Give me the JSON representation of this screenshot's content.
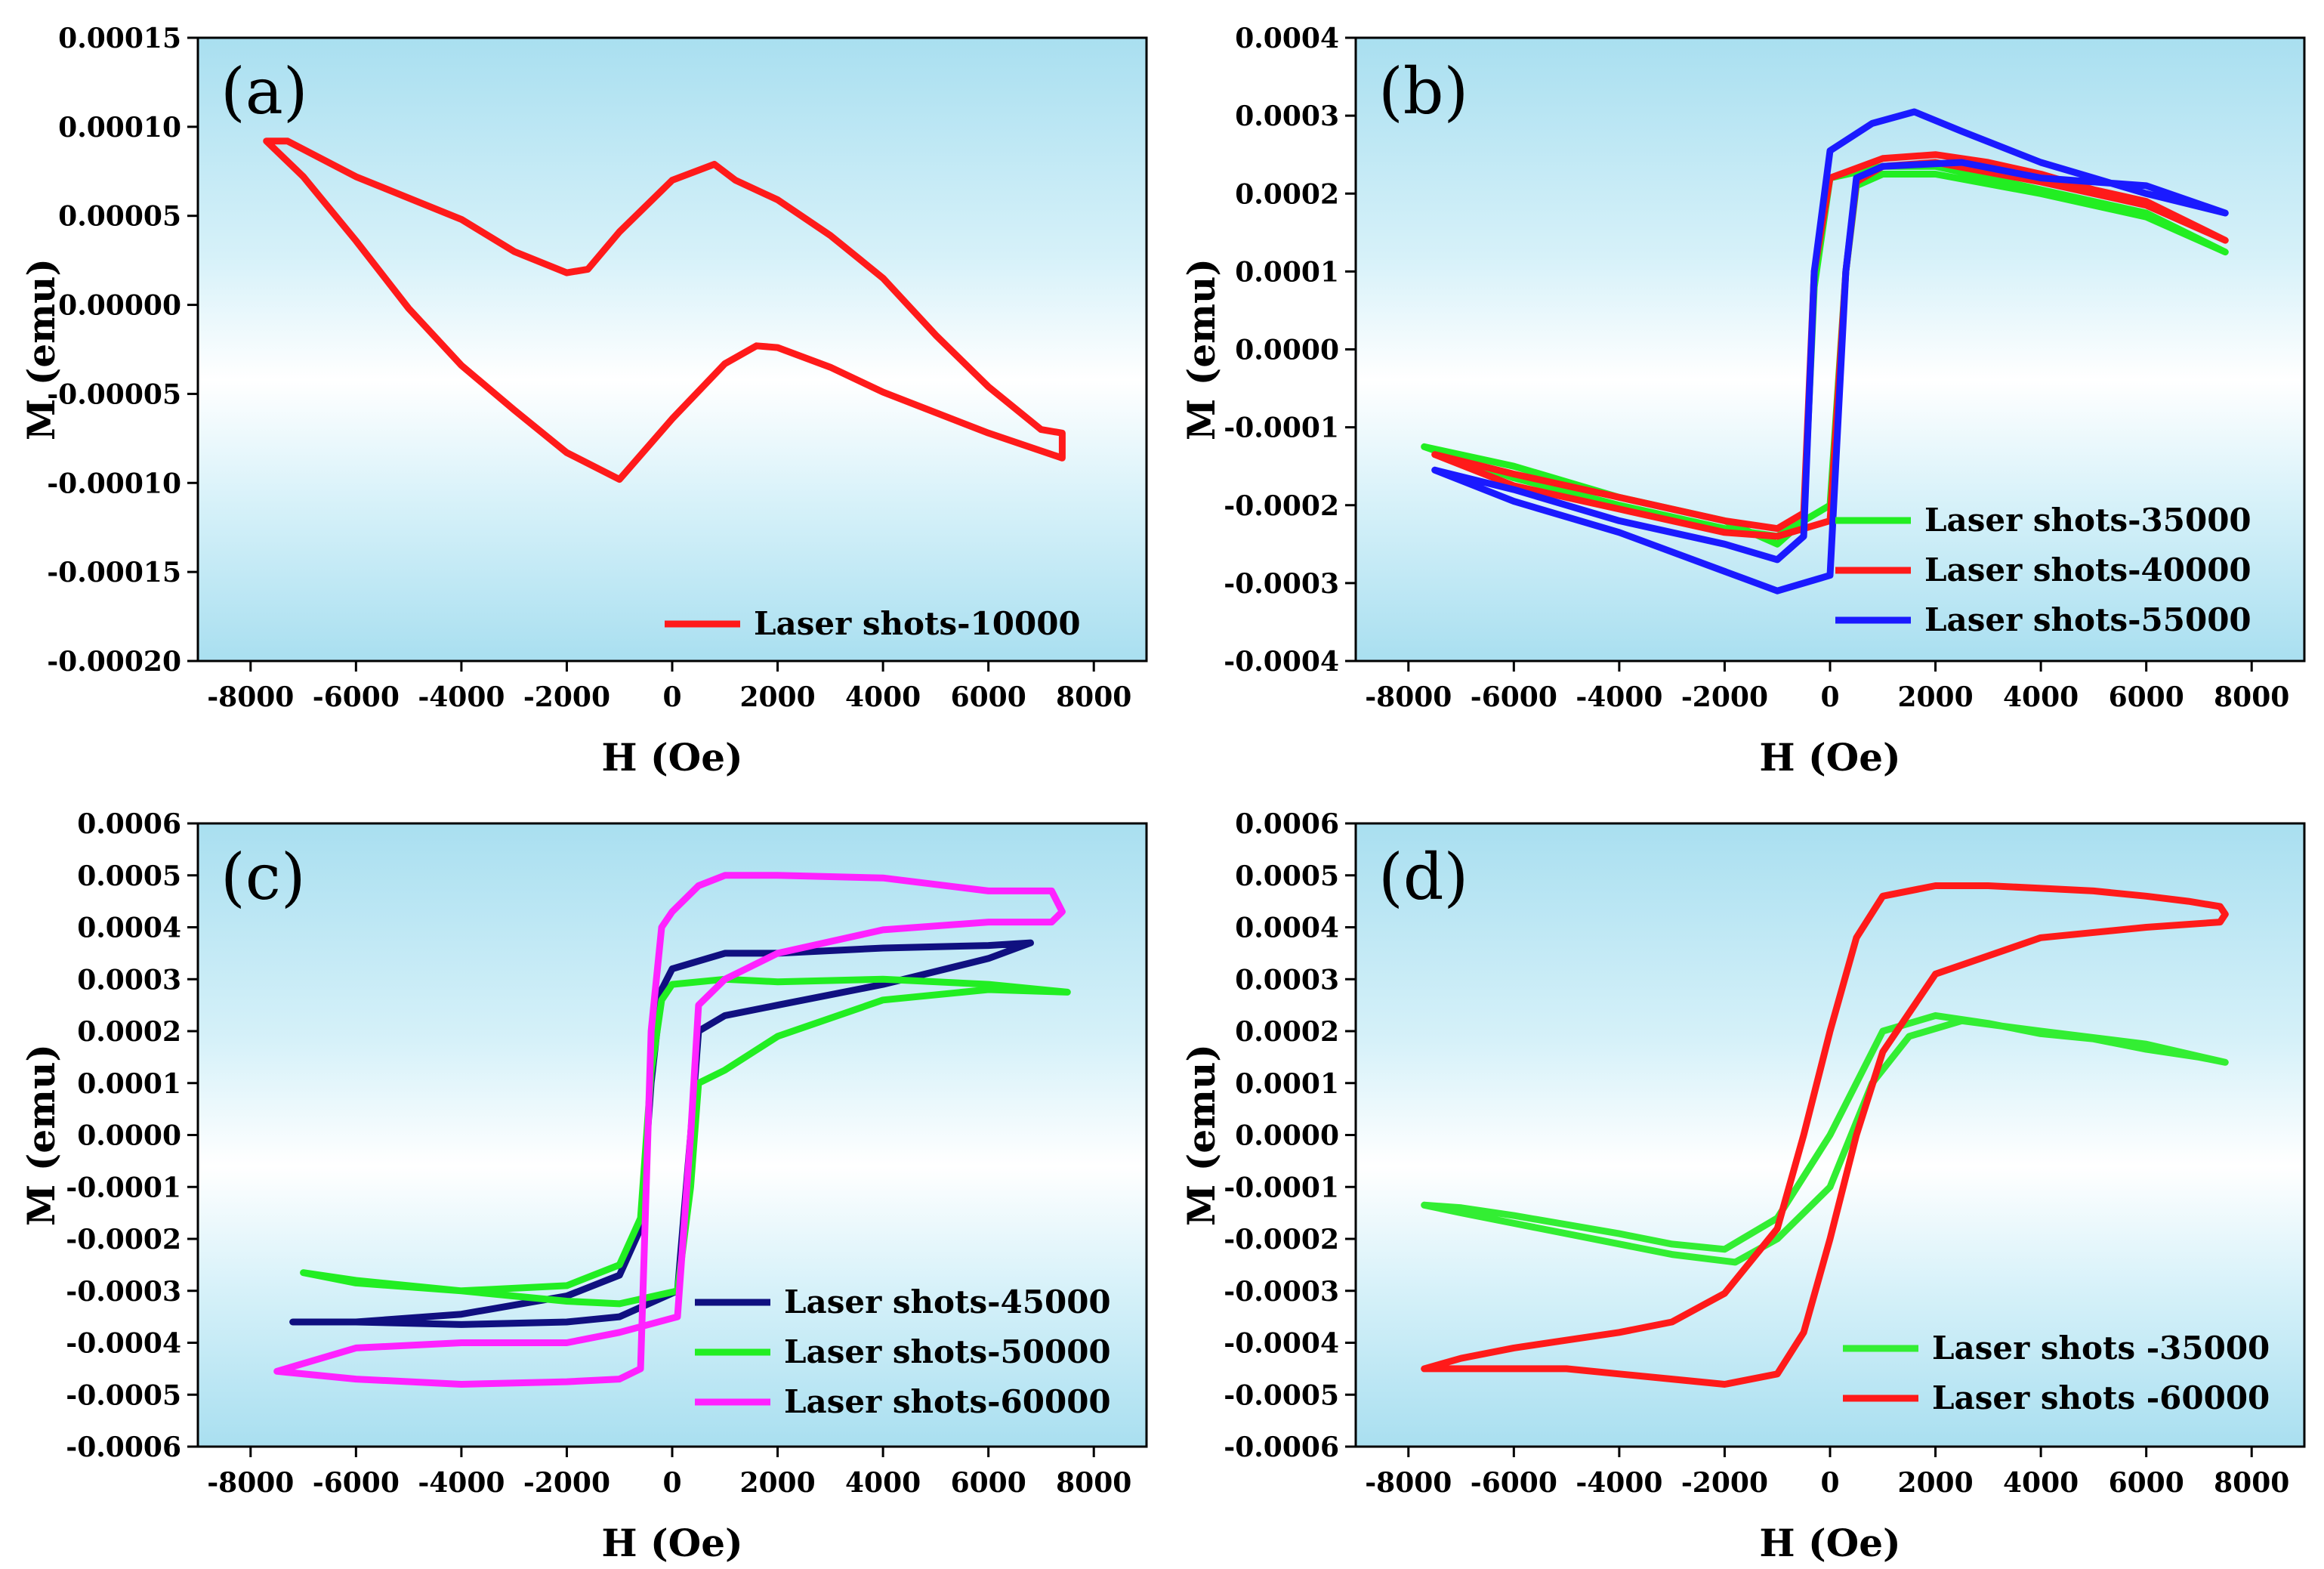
{
  "chart_data": [
    {
      "type": "line",
      "panel_label": "(a)",
      "xlabel": "H (Oe)",
      "ylabel": "M (emu)",
      "xlim": [
        -9000,
        9000
      ],
      "ylim": [
        -0.0002,
        0.00015
      ],
      "xticks": [
        -8000,
        -6000,
        -4000,
        -2000,
        0,
        2000,
        4000,
        6000,
        8000
      ],
      "xtick_labels": [
        "-8000",
        "-6000",
        "-4000",
        "-2000",
        "0",
        "2000",
        "4000",
        "6000",
        "8000"
      ],
      "yticks": [
        -0.0002,
        -0.00015,
        -0.0001,
        -5e-05,
        0,
        5e-05,
        0.0001,
        0.00015
      ],
      "ytick_labels": [
        "-0.00020",
        "-0.00015",
        "-0.00010",
        "-0.00005",
        "0.00000",
        "0.00005",
        "0.00010",
        "0.00015"
      ],
      "legend_position": "bottom-right",
      "series": [
        {
          "name": "Laser shots-10000",
          "color": "#ff1a1a",
          "x": [
            -7700,
            -7300,
            -6000,
            -4000,
            -3000,
            -2000,
            -1600,
            -1000,
            0,
            800,
            1200,
            2000,
            3000,
            4000,
            5000,
            6000,
            7000,
            7400,
            7400,
            7000,
            6000,
            4000,
            3000,
            2000,
            1600,
            1000,
            0,
            -1000,
            -2000,
            -3000,
            -4000,
            -5000,
            -6000,
            -7000,
            -7700
          ],
          "y": [
            9.2e-05,
            9.2e-05,
            7.2e-05,
            4.8e-05,
            3e-05,
            1.8e-05,
            2e-05,
            4.1e-05,
            7e-05,
            7.9e-05,
            7e-05,
            5.9e-05,
            3.9e-05,
            1.5e-05,
            -1.7e-05,
            -4.6e-05,
            -7e-05,
            -7.2e-05,
            -8.6e-05,
            -8.2e-05,
            -7.2e-05,
            -4.9e-05,
            -3.5e-05,
            -2.4e-05,
            -2.3e-05,
            -3.3e-05,
            -6.4e-05,
            -9.8e-05,
            -8.3e-05,
            -5.9e-05,
            -3.4e-05,
            -2e-06,
            3.6e-05,
            7.2e-05,
            9.2e-05
          ]
        }
      ]
    },
    {
      "type": "line",
      "panel_label": "(b)",
      "xlabel": "H (Oe)",
      "ylabel": "M (emu)",
      "xlim": [
        -9000,
        9000
      ],
      "ylim": [
        -0.0004,
        0.0004
      ],
      "xticks": [
        -8000,
        -6000,
        -4000,
        -2000,
        0,
        2000,
        4000,
        6000,
        8000
      ],
      "xtick_labels": [
        "-8000",
        "-6000",
        "-4000",
        "-2000",
        "0",
        "2000",
        "4000",
        "6000",
        "8000"
      ],
      "yticks": [
        -0.0004,
        -0.0003,
        -0.0002,
        -0.0001,
        0,
        0.0001,
        0.0002,
        0.0003,
        0.0004
      ],
      "ytick_labels": [
        "-0.0004",
        "-0.0003",
        "-0.0002",
        "-0.0001",
        "0.0000",
        "0.0001",
        "0.0002",
        "0.0003",
        "0.0004"
      ],
      "legend_position": "bottom-right",
      "series": [
        {
          "name": "Laser shots-35000",
          "color": "#22ee22",
          "x": [
            -7700,
            -6000,
            -4000,
            -2000,
            -1000,
            -500,
            -300,
            0,
            1000,
            2000,
            3000,
            4000,
            5000,
            6000,
            7500,
            7500,
            6000,
            4000,
            2000,
            1000,
            500,
            300,
            0,
            -1000,
            -2000,
            -4000,
            -6000,
            -7700
          ],
          "y": [
            -0.000125,
            -0.00015,
            -0.00019,
            -0.00022,
            -0.00025,
            -0.00022,
            8e-05,
            0.00022,
            0.000235,
            0.000235,
            0.00022,
            0.000205,
            0.00019,
            0.000175,
            0.000125,
            0.000125,
            0.00017,
            0.0002,
            0.000225,
            0.000225,
            0.00021,
            0.0001,
            -0.0002,
            -0.00024,
            -0.00023,
            -0.0002,
            -0.000165,
            -0.000125
          ]
        },
        {
          "name": "Laser shots-40000",
          "color": "#ff1a1a",
          "x": [
            -7500,
            -6000,
            -4000,
            -2000,
            -1000,
            -500,
            -300,
            0,
            1000,
            2000,
            3000,
            4000,
            5000,
            6000,
            7500,
            7500,
            6000,
            4000,
            2000,
            1000,
            500,
            300,
            0,
            -1000,
            -2000,
            -4000,
            -6000,
            -7500
          ],
          "y": [
            -0.000135,
            -0.00016,
            -0.00019,
            -0.00022,
            -0.00023,
            -0.00021,
            0.0001,
            0.00022,
            0.000245,
            0.00025,
            0.00024,
            0.000225,
            0.000205,
            0.00019,
            0.00014,
            0.00014,
            0.000185,
            0.000215,
            0.00024,
            0.000235,
            0.000215,
            0.0001,
            -0.00022,
            -0.00024,
            -0.000235,
            -0.000205,
            -0.000175,
            -0.000135
          ]
        },
        {
          "name": "Laser shots-55000",
          "color": "#1a1aff",
          "x": [
            -7500,
            -6000,
            -4000,
            -2000,
            -1000,
            -500,
            -300,
            0,
            800,
            1600,
            2500,
            4000,
            5000,
            6000,
            7500,
            7500,
            6000,
            4000,
            2500,
            1000,
            500,
            300,
            0,
            -1000,
            -2000,
            -4000,
            -6000,
            -7500
          ],
          "y": [
            -0.000155,
            -0.00018,
            -0.00022,
            -0.00025,
            -0.00027,
            -0.00024,
            0.0001,
            0.000255,
            0.00029,
            0.000305,
            0.00028,
            0.00024,
            0.00022,
            0.0002,
            0.000175,
            0.000175,
            0.00021,
            0.00022,
            0.00024,
            0.000235,
            0.00022,
            0.0001,
            -0.00029,
            -0.00031,
            -0.000285,
            -0.000235,
            -0.000195,
            -0.000155
          ]
        }
      ]
    },
    {
      "type": "line",
      "panel_label": "(c)",
      "xlabel": "H (Oe)",
      "ylabel": "M (emu)",
      "xlim": [
        -9000,
        9000
      ],
      "ylim": [
        -0.0006,
        0.0006
      ],
      "xticks": [
        -8000,
        -6000,
        -4000,
        -2000,
        0,
        2000,
        4000,
        6000,
        8000
      ],
      "xtick_labels": [
        "-8000",
        "-6000",
        "-4000",
        "-2000",
        "0",
        "2000",
        "4000",
        "6000",
        "8000"
      ],
      "yticks": [
        -0.0006,
        -0.0005,
        -0.0004,
        -0.0003,
        -0.0002,
        -0.0001,
        0,
        0.0001,
        0.0002,
        0.0003,
        0.0004,
        0.0005,
        0.0006
      ],
      "ytick_labels": [
        "-0.0006",
        "-0.0005",
        "-0.0004",
        "-0.0003",
        "-0.0002",
        "-0.0001",
        "0.0000",
        "0.0001",
        "0.0002",
        "0.0003",
        "0.0004",
        "0.0005",
        "0.0006"
      ],
      "legend_position": "bottom-right",
      "series": [
        {
          "name": "Laser shots-45000",
          "color": "#101080",
          "x": [
            -7200,
            -6000,
            -4000,
            -2000,
            -1000,
            -600,
            -400,
            -200,
            0,
            1000,
            2000,
            4000,
            6000,
            6800,
            6800,
            6000,
            4000,
            2000,
            1000,
            500,
            350,
            100,
            -1000,
            -2000,
            -4000,
            -6000,
            -7200
          ],
          "y": [
            -0.00036,
            -0.00036,
            -0.000345,
            -0.00031,
            -0.00027,
            -0.00018,
            0.0001,
            0.00028,
            0.00032,
            0.00035,
            0.00035,
            0.00036,
            0.000365,
            0.00037,
            0.00037,
            0.00034,
            0.00029,
            0.00025,
            0.00023,
            0.0002,
            0.0,
            -0.0003,
            -0.00035,
            -0.00036,
            -0.000365,
            -0.00036,
            -0.00036
          ]
        },
        {
          "name": "Laser shots-50000",
          "color": "#22ee22",
          "x": [
            -7000,
            -6000,
            -4000,
            -2000,
            -1000,
            -600,
            -400,
            -200,
            0,
            1000,
            2000,
            4000,
            6000,
            7500,
            7500,
            6000,
            4000,
            2000,
            1000,
            500,
            350,
            100,
            -1000,
            -2000,
            -4000,
            -6000,
            -7000
          ],
          "y": [
            -0.000265,
            -0.00028,
            -0.0003,
            -0.00029,
            -0.00025,
            -0.00016,
            0.00012,
            0.00026,
            0.00029,
            0.0003,
            0.000295,
            0.0003,
            0.00029,
            0.000275,
            0.000275,
            0.00028,
            0.00026,
            0.00019,
            0.000125,
            0.0001,
            -0.0001,
            -0.0003,
            -0.000325,
            -0.00032,
            -0.0003,
            -0.000285,
            -0.000265
          ]
        },
        {
          "name": "Laser shots-60000",
          "color": "#ff22ff",
          "x": [
            -7500,
            -6000,
            -4000,
            -2000,
            -1000,
            -600,
            -400,
            -200,
            0,
            500,
            1000,
            2000,
            4000,
            6000,
            7200,
            7400,
            7200,
            6000,
            4000,
            2000,
            1000,
            500,
            350,
            100,
            -1000,
            -2000,
            -4000,
            -6000,
            -7500
          ],
          "y": [
            -0.000455,
            -0.00047,
            -0.00048,
            -0.000475,
            -0.00047,
            -0.00045,
            0.0002,
            0.0004,
            0.00043,
            0.00048,
            0.0005,
            0.0005,
            0.000495,
            0.00047,
            0.00047,
            0.00043,
            0.00041,
            0.00041,
            0.000395,
            0.00035,
            0.0003,
            0.00025,
            0.0,
            -0.00035,
            -0.00038,
            -0.0004,
            -0.0004,
            -0.00041,
            -0.000455
          ]
        }
      ]
    },
    {
      "type": "line",
      "panel_label": "(d)",
      "xlabel": "H (Oe)",
      "ylabel": "M (emu)",
      "xlim": [
        -9000,
        9000
      ],
      "ylim": [
        -0.0006,
        0.0006
      ],
      "xticks": [
        -8000,
        -6000,
        -4000,
        -2000,
        0,
        2000,
        4000,
        6000,
        8000
      ],
      "xtick_labels": [
        "-8000",
        "-6000",
        "-4000",
        "-2000",
        "0",
        "2000",
        "4000",
        "6000",
        "8000"
      ],
      "yticks": [
        -0.0006,
        -0.0005,
        -0.0004,
        -0.0003,
        -0.0002,
        -0.0001,
        0,
        0.0001,
        0.0002,
        0.0003,
        0.0004,
        0.0005,
        0.0006
      ],
      "ytick_labels": [
        "-0.0006",
        "-0.0005",
        "-0.0004",
        "-0.0003",
        "-0.0002",
        "-0.0001",
        "0.0000",
        "0.0001",
        "0.0002",
        "0.0003",
        "0.0004",
        "0.0005",
        "0.0006"
      ],
      "legend_position": "bottom-right",
      "series": [
        {
          "name": "Laser shots -35000",
          "color": "#33ee33",
          "x": [
            -7700,
            -7000,
            -6000,
            -4000,
            -3000,
            -2000,
            -1000,
            0,
            1000,
            2000,
            3000,
            4000,
            5000,
            6000,
            7000,
            7500,
            6000,
            4000,
            2500,
            1500,
            800,
            0,
            -1000,
            -1800,
            -3000,
            -5000,
            -7000,
            -7700
          ],
          "y": [
            -0.000135,
            -0.00014,
            -0.000155,
            -0.00019,
            -0.00021,
            -0.00022,
            -0.00016,
            0.0,
            0.0002,
            0.00023,
            0.000215,
            0.000195,
            0.000185,
            0.000165,
            0.00015,
            0.00014,
            0.000175,
            0.0002,
            0.00022,
            0.00019,
            0.0001,
            -0.0001,
            -0.0002,
            -0.000245,
            -0.00023,
            -0.00019,
            -0.00015,
            -0.000135
          ]
        },
        {
          "name": "Laser shots -60000",
          "color": "#ff1a1a",
          "x": [
            -7700,
            -7000,
            -6000,
            -5000,
            -4000,
            -3000,
            -2000,
            -1000,
            -500,
            0,
            500,
            1000,
            2000,
            3000,
            4000,
            5000,
            6000,
            6800,
            7400,
            7500,
            7400,
            6000,
            4000,
            2000,
            1000,
            500,
            0,
            -500,
            -1000,
            -2000,
            -3000,
            -4000,
            -5000,
            -6000,
            -7000,
            -7700
          ],
          "y": [
            -0.00045,
            -0.00043,
            -0.00041,
            -0.000395,
            -0.00038,
            -0.00036,
            -0.000305,
            -0.00018,
            0.0,
            0.0002,
            0.00038,
            0.00046,
            0.00048,
            0.00048,
            0.000475,
            0.00047,
            0.00046,
            0.00045,
            0.00044,
            0.000425,
            0.00041,
            0.0004,
            0.00038,
            0.00031,
            0.00016,
            0.0,
            -0.0002,
            -0.00038,
            -0.00046,
            -0.00048,
            -0.00047,
            -0.00046,
            -0.00045,
            -0.00045,
            -0.00045,
            -0.00045
          ]
        }
      ]
    }
  ]
}
